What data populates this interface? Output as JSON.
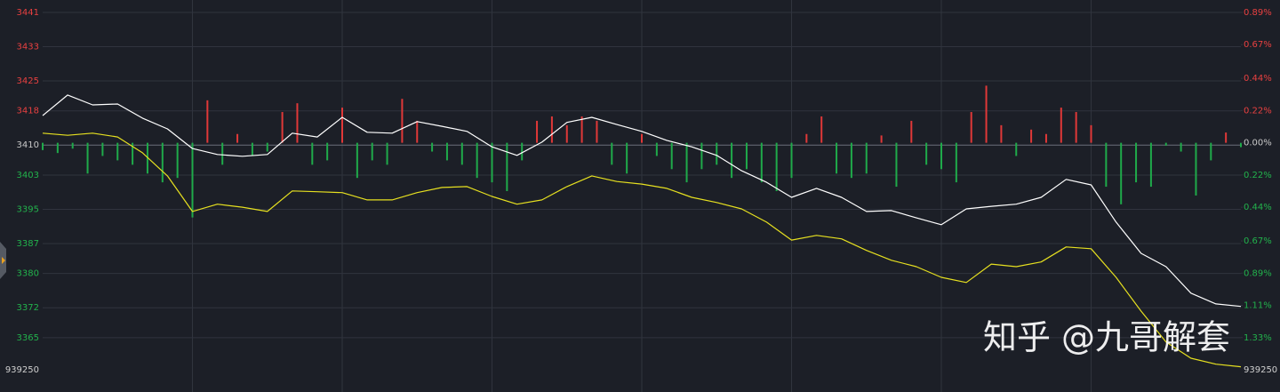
{
  "chart_data": {
    "type": "line",
    "watermark": "知乎 @九哥解套",
    "volume_label": "939250",
    "xlim": [
      0,
      240
    ],
    "xticks": [
      30,
      60,
      90,
      120,
      150,
      180,
      210
    ],
    "grid": true,
    "ylim": [
      3357.5,
      3441
    ],
    "yticks": [
      3441,
      3433,
      3425,
      3418,
      3410,
      3403,
      3395,
      3387,
      3380,
      3372,
      3365
    ],
    "y2lim": [
      -1.55,
      0.89
    ],
    "y2ticks": [
      {
        "value": 0.89,
        "label": "0.89%"
      },
      {
        "value": 0.67,
        "label": "0.67%"
      },
      {
        "value": 0.44,
        "label": "0.44%"
      },
      {
        "value": 0.22,
        "label": "0.22%"
      },
      {
        "value": 0,
        "label": "0.00%"
      },
      {
        "value": -0.22,
        "label": "0.22%"
      },
      {
        "value": -0.44,
        "label": "0.44%"
      },
      {
        "value": -0.67,
        "label": "0.67%"
      },
      {
        "value": -0.89,
        "label": "0.89%"
      },
      {
        "value": -1.11,
        "label": "1.11%"
      },
      {
        "value": -1.33,
        "label": "1.33%"
      }
    ],
    "up_color": "#e03838",
    "down_color": "#1faa4a",
    "x": [
      0,
      5,
      10,
      15,
      20,
      25,
      30,
      35,
      40,
      45,
      50,
      55,
      60,
      65,
      70,
      75,
      80,
      85,
      90,
      95,
      100,
      105,
      110,
      115,
      120,
      125,
      130,
      135,
      140,
      145,
      150,
      155,
      160,
      165,
      170,
      175,
      180,
      185,
      190,
      195,
      200,
      205,
      210,
      215,
      220,
      225,
      230,
      235,
      240
    ],
    "series": [
      {
        "color": "#ffffff",
        "values": [
          3416.9,
          3421.7,
          3419.4,
          3419.6,
          3416.3,
          3413.8,
          3409.2,
          3407.8,
          3407.4,
          3407.8,
          3412.8,
          3411.9,
          3416.5,
          3413.0,
          3412.8,
          3415.5,
          3414.4,
          3413.2,
          3409.6,
          3407.6,
          3410.7,
          3415.3,
          3416.5,
          3414.8,
          3413.2,
          3411.1,
          3409.6,
          3407.6,
          3404.0,
          3401.3,
          3397.8,
          3399.9,
          3397.8,
          3394.5,
          3394.7,
          3393.0,
          3391.4,
          3395.1,
          3395.7,
          3396.2,
          3397.8,
          3402.0,
          3400.7,
          3392.0,
          3384.7,
          3381.6,
          3375.4,
          3372.9,
          3372.3
        ]
      },
      {
        "color": "#e6e020",
        "values": [
          3412.8,
          3412.3,
          3412.8,
          3411.9,
          3408.2,
          3402.8,
          3394.5,
          3396.2,
          3395.5,
          3394.5,
          3399.3,
          3399.1,
          3398.9,
          3397.2,
          3397.2,
          3398.9,
          3400.1,
          3400.3,
          3398.0,
          3396.2,
          3397.2,
          3400.3,
          3402.8,
          3401.5,
          3400.9,
          3399.9,
          3397.8,
          3396.6,
          3395.1,
          3392.0,
          3387.8,
          3388.9,
          3388.1,
          3385.4,
          3383.1,
          3381.6,
          3379.1,
          3377.9,
          3382.2,
          3381.6,
          3382.7,
          3386.2,
          3385.8,
          3379.1,
          3371.2,
          3364.0,
          3360.2,
          3358.8,
          3358.2
        ]
      }
    ],
    "bars": {
      "axis": "y2",
      "x": [
        0,
        3,
        6,
        9,
        12,
        15,
        18,
        21,
        24,
        27,
        30,
        33,
        36,
        39,
        42,
        45,
        48,
        51,
        54,
        57,
        60,
        63,
        66,
        69,
        72,
        75,
        78,
        81,
        84,
        87,
        90,
        93,
        96,
        99,
        102,
        105,
        108,
        111,
        114,
        117,
        120,
        123,
        126,
        129,
        132,
        135,
        138,
        141,
        144,
        147,
        150,
        153,
        156,
        159,
        162,
        165,
        168,
        171,
        174,
        177,
        180,
        183,
        186,
        189,
        192,
        195,
        198,
        201,
        204,
        207,
        210,
        213,
        216,
        219,
        222,
        225,
        228,
        231,
        234,
        237,
        240
      ],
      "values": [
        -0.05,
        -0.07,
        -0.04,
        -0.21,
        -0.09,
        -0.12,
        -0.15,
        -0.21,
        -0.27,
        -0.24,
        -0.51,
        0.29,
        -0.15,
        0.06,
        -0.09,
        -0.06,
        0.21,
        0.27,
        -0.15,
        -0.12,
        0.24,
        -0.24,
        -0.12,
        -0.15,
        0.3,
        0.15,
        -0.06,
        -0.12,
        -0.15,
        -0.24,
        -0.27,
        -0.33,
        -0.12,
        0.15,
        0.18,
        0.12,
        0.18,
        0.15,
        -0.15,
        -0.21,
        0.06,
        -0.09,
        -0.18,
        -0.27,
        -0.18,
        -0.15,
        -0.24,
        -0.18,
        -0.27,
        -0.33,
        -0.24,
        0.06,
        0.18,
        -0.21,
        -0.24,
        -0.21,
        0.05,
        -0.3,
        0.15,
        -0.15,
        -0.18,
        -0.27,
        0.21,
        0.39,
        0.12,
        -0.09,
        0.09,
        0.06,
        0.24,
        0.21,
        0.12,
        -0.3,
        -0.42,
        -0.27,
        -0.3,
        -0.02,
        -0.06,
        -0.36,
        -0.12,
        0.07,
        -0.03
      ]
    }
  }
}
